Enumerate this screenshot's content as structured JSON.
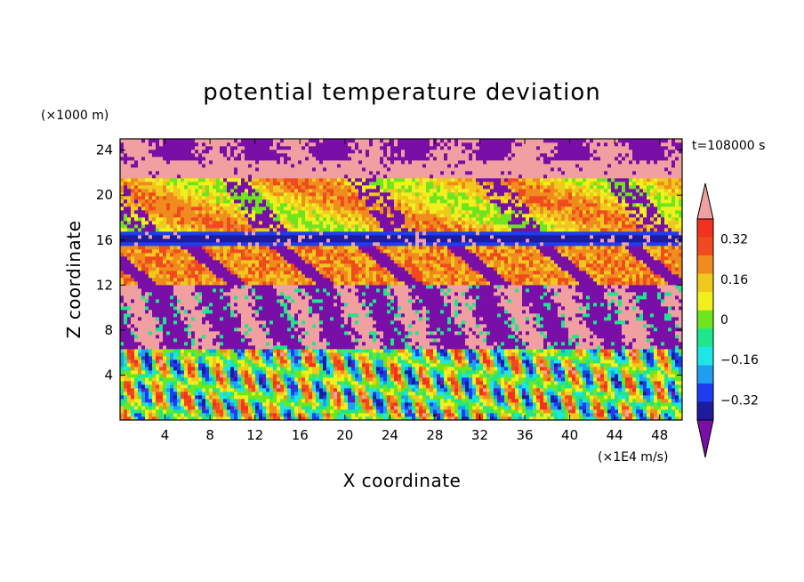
{
  "chart_data": {
    "type": "heatmap",
    "title": "potential temperature deviation",
    "xlabel": "X coordinate",
    "ylabel": "Z coordinate",
    "x_unit": "(×1E4 m/s)",
    "y_unit": "(×1000 m)",
    "time_label": "t=108000 s",
    "xlim": [
      0,
      50
    ],
    "ylim": [
      0,
      25
    ],
    "x_ticks": [
      "4",
      "8",
      "12",
      "16",
      "20",
      "24",
      "28",
      "32",
      "36",
      "40",
      "44",
      "48"
    ],
    "y_ticks": [
      "4",
      "8",
      "12",
      "16",
      "20",
      "24"
    ],
    "colorbar": {
      "levels": [
        -0.4,
        -0.32,
        -0.24,
        -0.16,
        -0.08,
        0,
        0.08,
        0.16,
        0.24,
        0.32,
        0.4
      ],
      "tick_labels": [
        "0.32",
        "0.16",
        "0",
        "−0.16",
        "−0.32"
      ],
      "tick_values": [
        0.32,
        0.16,
        0,
        -0.16,
        -0.32
      ],
      "colors_low_to_high": [
        "#7a0fa8",
        "#1c1c9c",
        "#1e3cf0",
        "#1ea0f0",
        "#1ee6e6",
        "#1ee68c",
        "#6ee61e",
        "#f0f01e",
        "#f0c81e",
        "#f08c1e",
        "#f04b1e",
        "#f0321e",
        "#f0a0a0"
      ],
      "under_color": "#7a0fa8",
      "over_color": "#f0a0a0"
    },
    "vertical_structure_description_rows": [
      {
        "z_range": [
          23,
          25
        ],
        "dominant": "pink/purple mix"
      },
      {
        "z_range": [
          21.5,
          23
        ],
        "dominant": "pink"
      },
      {
        "z_range": [
          17,
          21.5
        ],
        "dominant": "yellow/orange"
      },
      {
        "z_range": [
          15.5,
          16.5
        ],
        "dominant": "blue band"
      },
      {
        "z_range": [
          12,
          15
        ],
        "dominant": "orange"
      },
      {
        "z_range": [
          7,
          12
        ],
        "dominant": "purple/pink plumes"
      },
      {
        "z_range": [
          0,
          6
        ],
        "dominant": "mixed oscillating waves"
      }
    ]
  }
}
